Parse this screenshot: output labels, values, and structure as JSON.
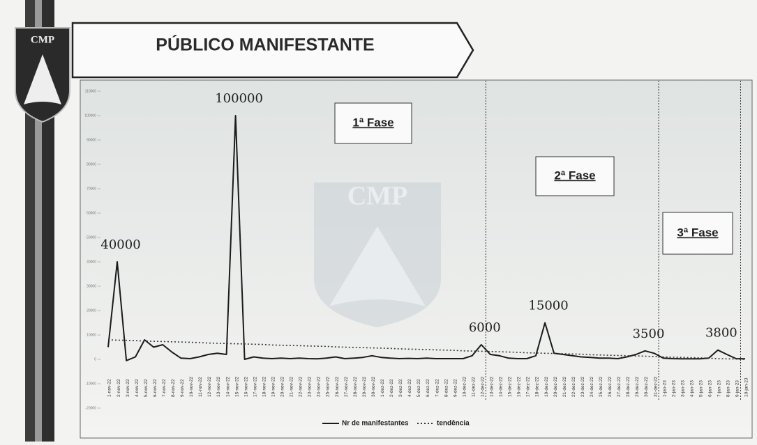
{
  "header": {
    "logo": "CMP",
    "title": "PÚBLICO MANIFESTANTE"
  },
  "chart_data": {
    "type": "line",
    "categories": [
      "1-nov-22",
      "2-nov-22",
      "3-nov-22",
      "4-nov-22",
      "5-nov-22",
      "6-nov-22",
      "7-nov-22",
      "8-nov-22",
      "9-nov-22",
      "10-nov-22",
      "11-nov-22",
      "12-nov-22",
      "13-nov-22",
      "14-nov-22",
      "15-nov-22",
      "16-nov-22",
      "17-nov-22",
      "18-nov-22",
      "19-nov-22",
      "20-nov-22",
      "21-nov-22",
      "22-nov-22",
      "23-nov-22",
      "24-nov-22",
      "25-nov-22",
      "26-nov-22",
      "27-nov-22",
      "28-nov-22",
      "29-nov-22",
      "30-nov-22",
      "1-dez-22",
      "2-dez-22",
      "3-dez-22",
      "4-dez-22",
      "5-dez-22",
      "6-dez-22",
      "7-dez-22",
      "8-dez-22",
      "9-dez-22",
      "10-dez-22",
      "11-dez-22",
      "12-dez-22",
      "13-dez-22",
      "14-dez-22",
      "15-dez-22",
      "16-dez-22",
      "17-dez-22",
      "18-dez-22",
      "19-dez-22",
      "20-dez-22",
      "21-dez-22",
      "22-dez-22",
      "23-dez-22",
      "24-dez-22",
      "25-dez-22",
      "26-dez-22",
      "27-dez-22",
      "28-dez-22",
      "29-dez-22",
      "30-dez-22",
      "31-dez-22",
      "1-jan-23",
      "2-jan-23",
      "3-jan-23",
      "4-jan-23",
      "5-jan-23",
      "6-jan-23",
      "7-jan-23",
      "8-jan-23",
      "9-jan-23",
      "10-jan-23"
    ],
    "series": [
      {
        "name": "Nr de manifestantes",
        "color": "#1a1a1a",
        "style": "solid",
        "values": [
          5000,
          40000,
          -500,
          1000,
          8000,
          5000,
          6000,
          3000,
          500,
          300,
          1000,
          2000,
          2500,
          2000,
          100000,
          0,
          1000,
          500,
          300,
          500,
          300,
          500,
          300,
          200,
          500,
          1000,
          300,
          500,
          800,
          1500,
          800,
          500,
          300,
          400,
          300,
          500,
          300,
          300,
          300,
          300,
          1500,
          6000,
          2000,
          1500,
          500,
          300,
          300,
          1500,
          15000,
          2500,
          2000,
          1500,
          1000,
          800,
          500,
          500,
          300,
          1000,
          2000,
          3500,
          2500,
          500,
          300,
          200,
          200,
          200,
          500,
          3800,
          2000,
          300,
          200
        ]
      },
      {
        "name": "tendência",
        "color": "#333333",
        "style": "dotted",
        "values": [
          8000,
          7900,
          7800,
          7700,
          7500,
          7400,
          7300,
          7200,
          7100,
          7000,
          6900,
          6700,
          6600,
          6500,
          6400,
          6300,
          6200,
          6100,
          5900,
          5800,
          5700,
          5600,
          5500,
          5400,
          5300,
          5100,
          5000,
          4900,
          4800,
          4700,
          4600,
          4500,
          4300,
          4200,
          4100,
          4000,
          3900,
          3800,
          3700,
          3500,
          3400,
          3300,
          3200,
          3100,
          3000,
          2900,
          2700,
          2600,
          2500,
          2400,
          2300,
          2200,
          2100,
          1900,
          1800,
          1700,
          1600,
          1500,
          1400,
          1300,
          1100,
          1000,
          900,
          800,
          700,
          600,
          500,
          300,
          200,
          100,
          0
        ]
      }
    ],
    "labeled_points": [
      1,
      14,
      41,
      48,
      59,
      67
    ],
    "ylim": [
      -20000,
      110000
    ],
    "yticks": [
      -20000,
      -10000,
      0,
      10000,
      20000,
      30000,
      40000,
      50000,
      60000,
      70000,
      80000,
      90000,
      100000,
      110000
    ],
    "phases": [
      "1ª Fase",
      "2ª Fase",
      "3ª Fase"
    ],
    "phase_boundaries": [
      "12-dez-22",
      "31-dez-22",
      "9-jan-23"
    ],
    "legend": "bottom"
  }
}
